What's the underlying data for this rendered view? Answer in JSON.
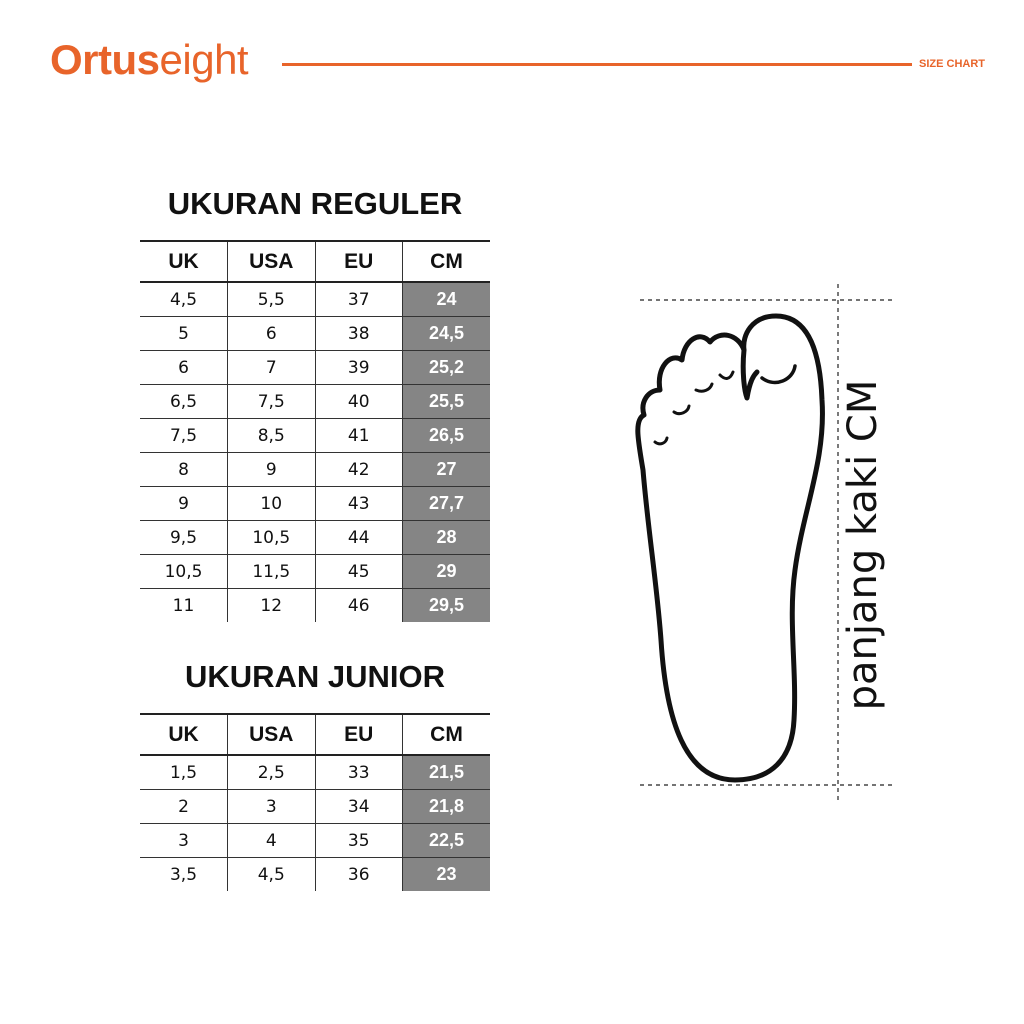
{
  "brand": {
    "logo_bold": "Ortus",
    "logo_light": "eight",
    "tag": "SIZE CHART",
    "accent": "#e8642a"
  },
  "headers": [
    "UK",
    "USA",
    "EU",
    "CM"
  ],
  "regular": {
    "title": "UKURAN REGULER",
    "rows": [
      [
        "4,5",
        "5,5",
        "37",
        "24"
      ],
      [
        "5",
        "6",
        "38",
        "24,5"
      ],
      [
        "6",
        "7",
        "39",
        "25,2"
      ],
      [
        "6,5",
        "7,5",
        "40",
        "25,5"
      ],
      [
        "7,5",
        "8,5",
        "41",
        "26,5"
      ],
      [
        "8",
        "9",
        "42",
        "27"
      ],
      [
        "9",
        "10",
        "43",
        "27,7"
      ],
      [
        "9,5",
        "10,5",
        "44",
        "28"
      ],
      [
        "10,5",
        "11,5",
        "45",
        "29"
      ],
      [
        "11",
        "12",
        "46",
        "29,5"
      ]
    ]
  },
  "junior": {
    "title": "UKURAN JUNIOR",
    "rows": [
      [
        "1,5",
        "2,5",
        "33",
        "21,5"
      ],
      [
        "2",
        "3",
        "34",
        "21,8"
      ],
      [
        "3",
        "4",
        "35",
        "22,5"
      ],
      [
        "3,5",
        "4,5",
        "36",
        "23"
      ]
    ]
  },
  "foot": {
    "label": "panjang kaki CM",
    "icon": "foot-outline-icon"
  }
}
